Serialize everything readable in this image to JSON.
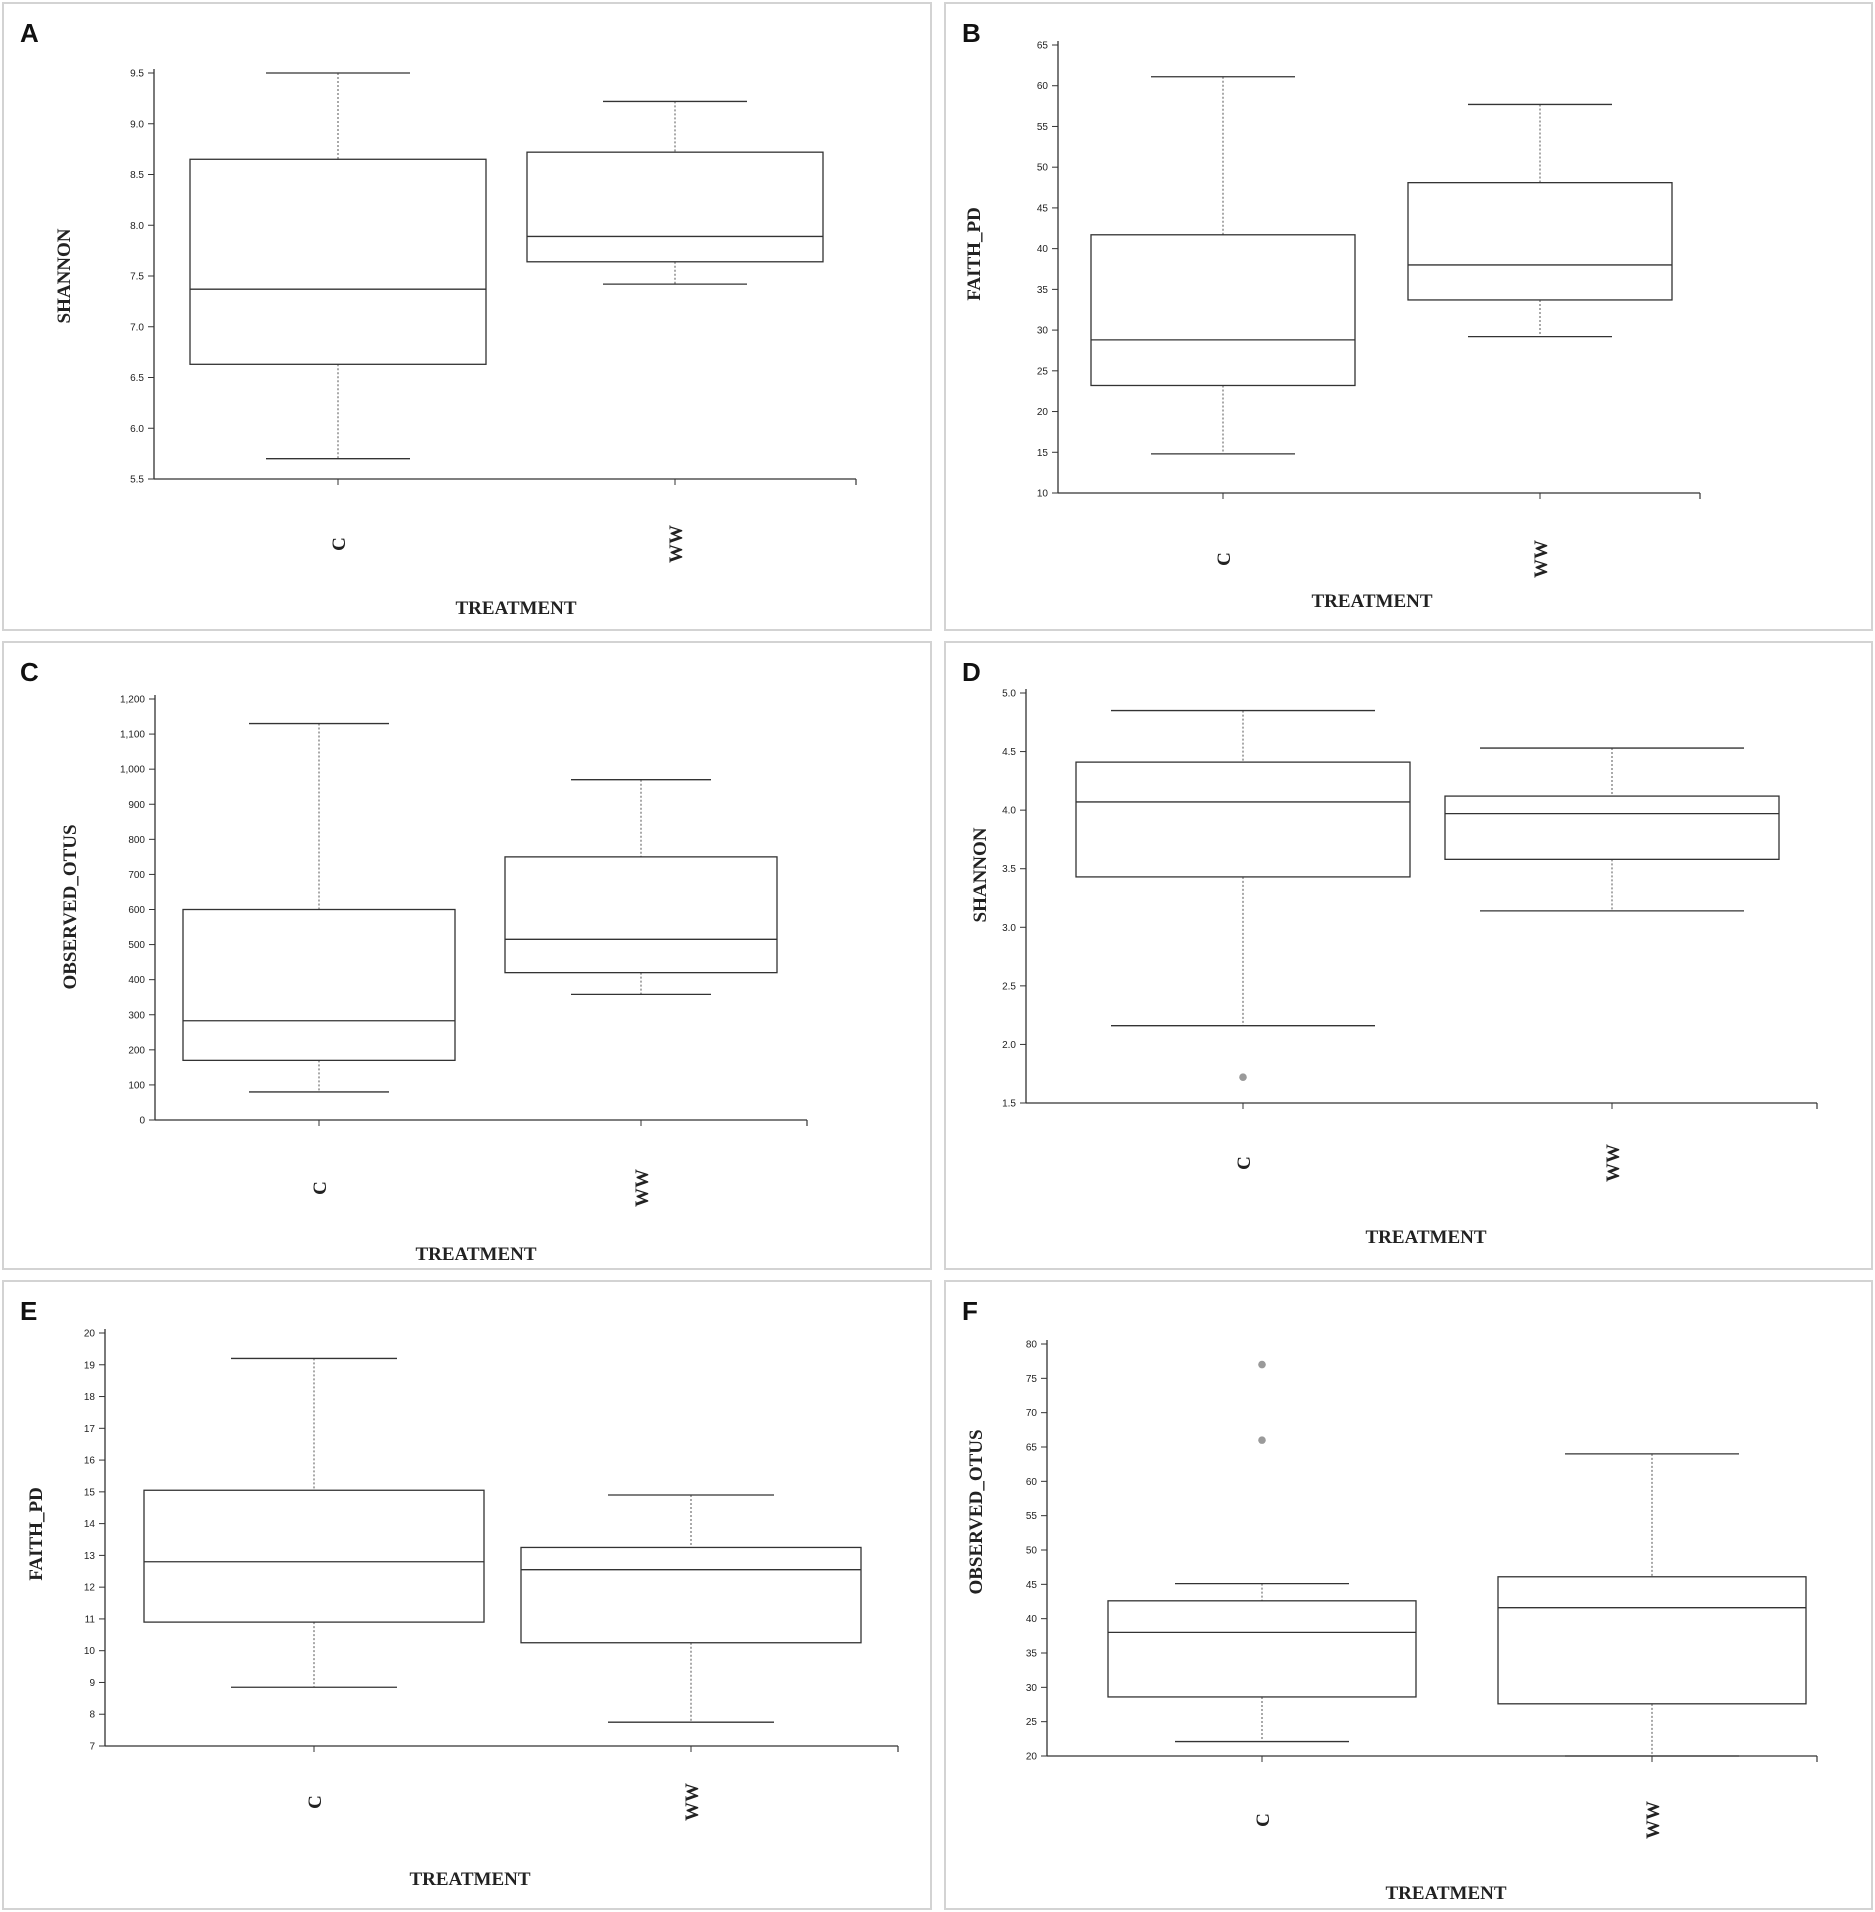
{
  "chart_data": [
    {
      "type": "box",
      "panel": "A",
      "xlabel": "TREATMENT",
      "ylabel": "SHANNON",
      "categories": [
        "C",
        "WW"
      ],
      "ylim": [
        5.5,
        9.5
      ],
      "yticks": [
        5.5,
        6.0,
        6.5,
        7.0,
        7.5,
        8.0,
        8.5,
        9.0,
        9.5
      ],
      "ytick_labels": [
        "5.5",
        "6.0",
        "6.5",
        "7.0",
        "7.5",
        "8.0",
        "8.5",
        "9.0",
        "9.5"
      ],
      "boxes": [
        {
          "category": "C",
          "min": 5.7,
          "q1": 6.63,
          "median": 7.37,
          "q3": 8.65,
          "max": 9.5,
          "outliers": []
        },
        {
          "category": "WW",
          "min": 7.42,
          "q1": 7.64,
          "median": 7.89,
          "q3": 8.72,
          "max": 9.22,
          "outliers": []
        }
      ]
    },
    {
      "type": "box",
      "panel": "B",
      "xlabel": "TREATMENT",
      "ylabel": "FAITH_PD",
      "categories": [
        "C",
        "WW"
      ],
      "ylim": [
        10,
        65
      ],
      "yticks": [
        10,
        15,
        20,
        25,
        30,
        35,
        40,
        45,
        50,
        55,
        60,
        65
      ],
      "ytick_labels": [
        "10",
        "15",
        "20",
        "25",
        "30",
        "35",
        "40",
        "45",
        "50",
        "55",
        "60",
        "65"
      ],
      "boxes": [
        {
          "category": "C",
          "min": 14.8,
          "q1": 23.2,
          "median": 28.8,
          "q3": 41.7,
          "max": 61.1,
          "outliers": []
        },
        {
          "category": "WW",
          "min": 29.2,
          "q1": 33.7,
          "median": 38.0,
          "q3": 48.1,
          "max": 57.7,
          "outliers": []
        }
      ]
    },
    {
      "type": "box",
      "panel": "C",
      "xlabel": "TREATMENT",
      "ylabel": "OBSERVED_OTUS",
      "categories": [
        "C",
        "WW"
      ],
      "ylim": [
        0,
        1200
      ],
      "yticks": [
        0,
        100,
        200,
        300,
        400,
        500,
        600,
        700,
        800,
        900,
        1000,
        1100,
        1200
      ],
      "ytick_labels": [
        "0",
        "100",
        "200",
        "300",
        "400",
        "500",
        "600",
        "700",
        "800",
        "900",
        "1,000",
        "1,100",
        "1,200"
      ],
      "boxes": [
        {
          "category": "C",
          "min": 80,
          "q1": 170,
          "median": 283,
          "q3": 600,
          "max": 1130,
          "outliers": []
        },
        {
          "category": "WW",
          "min": 358,
          "q1": 420,
          "median": 515,
          "q3": 750,
          "max": 970,
          "outliers": []
        }
      ]
    },
    {
      "type": "box",
      "panel": "D",
      "xlabel": "TREATMENT",
      "ylabel": "SHANNON",
      "categories": [
        "C",
        "WW"
      ],
      "ylim": [
        1.5,
        5.0
      ],
      "yticks": [
        1.5,
        2.0,
        2.5,
        3.0,
        3.5,
        4.0,
        4.5,
        5.0
      ],
      "ytick_labels": [
        "1.5",
        "2.0",
        "2.5",
        "3.0",
        "3.5",
        "4.0",
        "4.5",
        "5.0"
      ],
      "boxes": [
        {
          "category": "C",
          "min": 2.16,
          "q1": 3.43,
          "median": 4.07,
          "q3": 4.41,
          "max": 4.85,
          "outliers": [
            1.72
          ]
        },
        {
          "category": "WW",
          "min": 3.14,
          "q1": 3.58,
          "median": 3.97,
          "q3": 4.12,
          "max": 4.53,
          "outliers": []
        }
      ]
    },
    {
      "type": "box",
      "panel": "E",
      "xlabel": "TREATMENT",
      "ylabel": "FAITH_PD",
      "categories": [
        "C",
        "WW"
      ],
      "ylim": [
        7,
        20
      ],
      "yticks": [
        7,
        8,
        9,
        10,
        11,
        12,
        13,
        14,
        15,
        16,
        17,
        18,
        19,
        20
      ],
      "ytick_labels": [
        "7",
        "8",
        "9",
        "10",
        "11",
        "12",
        "13",
        "14",
        "15",
        "16",
        "17",
        "18",
        "19",
        "20"
      ],
      "boxes": [
        {
          "category": "C",
          "min": 8.85,
          "q1": 10.9,
          "median": 12.8,
          "q3": 15.05,
          "max": 19.2,
          "outliers": []
        },
        {
          "category": "WW",
          "min": 7.75,
          "q1": 10.25,
          "median": 12.55,
          "q3": 13.25,
          "max": 14.9,
          "outliers": []
        }
      ]
    },
    {
      "type": "box",
      "panel": "F",
      "xlabel": "TREATMENT",
      "ylabel": "OBSERVED_OTUS",
      "categories": [
        "C",
        "WW"
      ],
      "ylim": [
        20,
        80
      ],
      "yticks": [
        20,
        25,
        30,
        35,
        40,
        45,
        50,
        55,
        60,
        65,
        70,
        75,
        80
      ],
      "ytick_labels": [
        "20",
        "25",
        "30",
        "35",
        "40",
        "45",
        "50",
        "55",
        "60",
        "65",
        "70",
        "75",
        "80"
      ],
      "boxes": [
        {
          "category": "C",
          "min": 22.1,
          "q1": 28.6,
          "median": 38.0,
          "q3": 42.6,
          "max": 45.1,
          "outliers": [
            66.0,
            77.0
          ]
        },
        {
          "category": "WW",
          "min": 20.0,
          "q1": 27.6,
          "median": 41.6,
          "q3": 46.1,
          "max": 64.0,
          "outliers": []
        }
      ]
    }
  ]
}
